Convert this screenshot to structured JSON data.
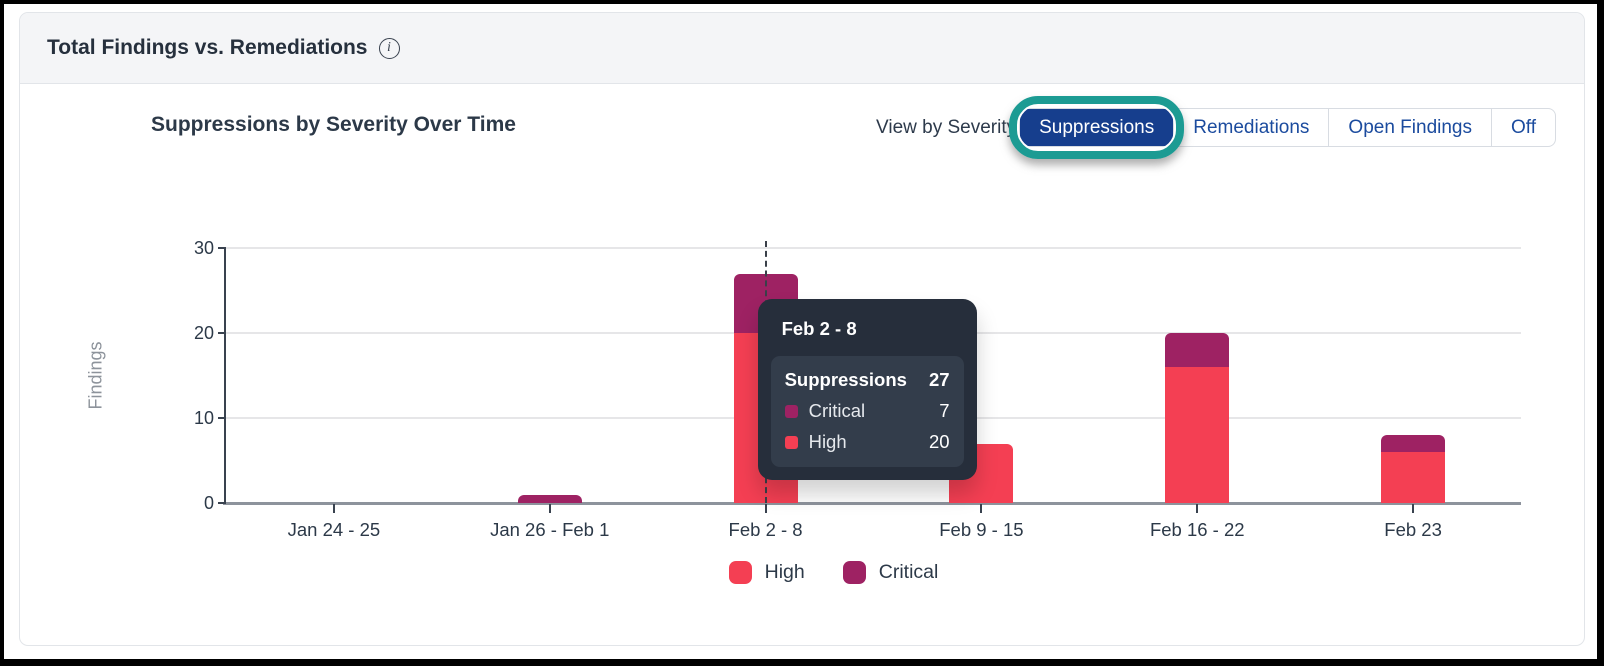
{
  "header": {
    "title": "Total Findings vs. Remediations"
  },
  "controls": {
    "view_by_label": "View by Severity",
    "options": [
      {
        "label": "Suppressions",
        "selected": true
      },
      {
        "label": "Remediations",
        "selected": false
      },
      {
        "label": "Open Findings",
        "selected": false
      },
      {
        "label": "Off",
        "selected": false
      }
    ],
    "selected_bg": "#163e8d",
    "link_color": "#1b4b9e",
    "annotation_ring_color": "#1c9b93"
  },
  "chart_data": {
    "type": "bar",
    "stacked": true,
    "title": "Suppressions by Severity Over Time",
    "xlabel": "",
    "ylabel": "Findings",
    "ylim": [
      0,
      30
    ],
    "yticks": [
      0,
      10,
      20,
      30
    ],
    "grid": true,
    "categories": [
      "Jan 24 - 25",
      "Jan 26 - Feb 1",
      "Feb 2 - 8",
      "Feb 9 - 15",
      "Feb 16 - 22",
      "Feb 23"
    ],
    "series": [
      {
        "name": "High",
        "color": "#f43f53",
        "values": [
          0,
          0,
          20,
          7,
          16,
          6
        ]
      },
      {
        "name": "Critical",
        "color": "#9e2263",
        "values": [
          0,
          1,
          7,
          0,
          4,
          2
        ]
      }
    ],
    "legend_position": "bottom"
  },
  "tooltip": {
    "visible": true,
    "category": "Feb 2 - 8",
    "title": "Feb 2 - 8",
    "total_label": "Suppressions",
    "total_value": "27",
    "rows": [
      {
        "label": "Critical",
        "value": "7",
        "color": "#9e2263"
      },
      {
        "label": "High",
        "value": "20",
        "color": "#f43f53"
      }
    ]
  }
}
